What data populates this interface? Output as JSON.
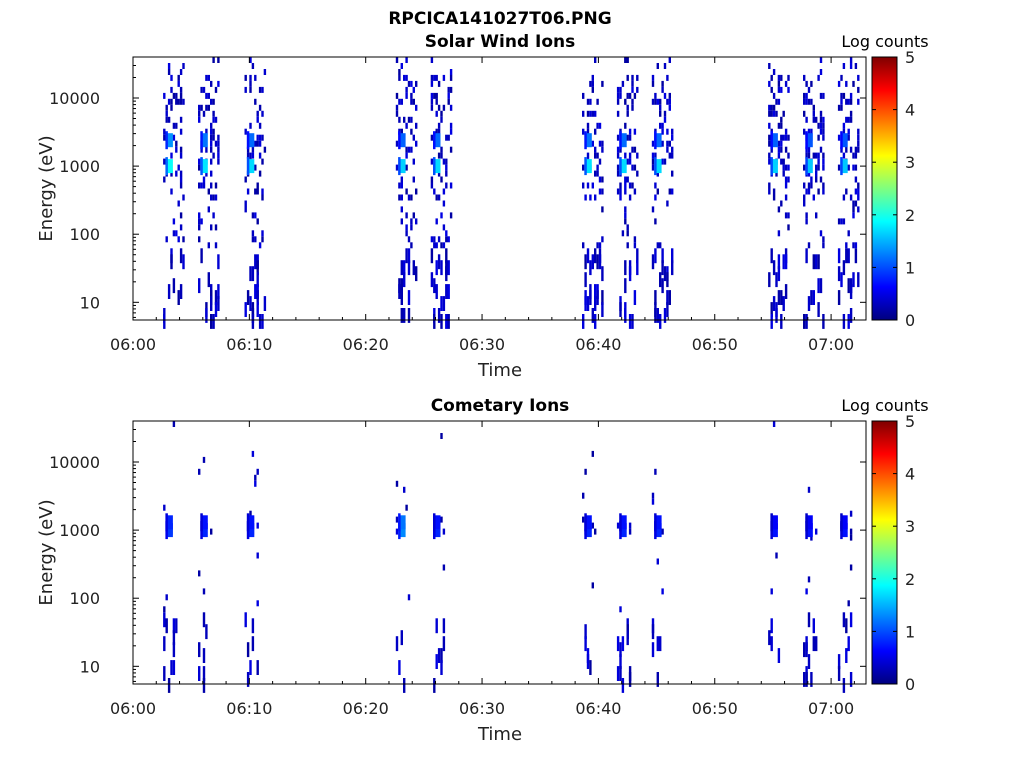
{
  "figure_title": "RPCICA141027T06.PNG",
  "colormap": {
    "stops": [
      "#00007f",
      "#0000ff",
      "#007fff",
      "#00ffff",
      "#7fff7f",
      "#ffff00",
      "#ff7f00",
      "#ff0000",
      "#7f0000"
    ]
  },
  "chart_data": [
    {
      "type": "heatmap",
      "title": "Solar Wind Ions",
      "xlabel": "Time",
      "ylabel": "Energy (eV)",
      "y_scale": "log",
      "xlim": [
        "06:00",
        "07:03"
      ],
      "ylim": [
        5.5,
        40000
      ],
      "x_ticks": [
        "06:00",
        "06:10",
        "06:20",
        "06:30",
        "06:40",
        "06:50",
        "07:00"
      ],
      "y_ticks": [
        "10",
        "100",
        "1000",
        "10000"
      ],
      "colorbar": {
        "label": "Log counts",
        "range": [
          0,
          5
        ],
        "ticks": [
          "0",
          "1",
          "2",
          "3",
          "4",
          "5"
        ]
      },
      "grid": false,
      "bursts": [
        {
          "time": "06:03",
          "value": 1.9
        },
        {
          "time": "06:06",
          "value": 1.75
        },
        {
          "time": "06:10",
          "value": 1.7
        },
        {
          "time": "06:23",
          "value": 1.65
        },
        {
          "time": "06:26",
          "value": 1.7
        },
        {
          "time": "06:39",
          "value": 1.75
        },
        {
          "time": "06:42",
          "value": 1.7
        },
        {
          "time": "06:45",
          "value": 1.7
        },
        {
          "time": "06:55",
          "value": 1.65
        },
        {
          "time": "06:58",
          "value": 1.6
        },
        {
          "time": "07:01",
          "value": 1.6
        }
      ],
      "peak_energy_ev": [
        1000,
        2400
      ]
    },
    {
      "type": "heatmap",
      "title": "Cometary Ions",
      "xlabel": "Time",
      "ylabel": "Energy (eV)",
      "y_scale": "log",
      "xlim": [
        "06:00",
        "07:03"
      ],
      "ylim": [
        5.5,
        40000
      ],
      "x_ticks": [
        "06:00",
        "06:10",
        "06:20",
        "06:30",
        "06:40",
        "06:50",
        "07:00"
      ],
      "y_ticks": [
        "10",
        "100",
        "1000",
        "10000"
      ],
      "colorbar": {
        "label": "Log counts",
        "range": [
          0,
          5
        ],
        "ticks": [
          "0",
          "1",
          "2",
          "3",
          "4",
          "5"
        ]
      },
      "grid": false,
      "bursts": [
        {
          "time": "06:03",
          "value": 0.9
        },
        {
          "time": "06:06",
          "value": 0.8
        },
        {
          "time": "06:10",
          "value": 0.8
        },
        {
          "time": "06:23",
          "value": 1.3
        },
        {
          "time": "06:26",
          "value": 0.8
        },
        {
          "time": "06:39",
          "value": 0.8
        },
        {
          "time": "06:42",
          "value": 0.8
        },
        {
          "time": "06:45",
          "value": 0.8
        },
        {
          "time": "06:55",
          "value": 0.7
        },
        {
          "time": "06:58",
          "value": 0.7
        },
        {
          "time": "07:01",
          "value": 0.7
        }
      ],
      "peak_energy_ev": [
        1000,
        1300
      ]
    }
  ]
}
